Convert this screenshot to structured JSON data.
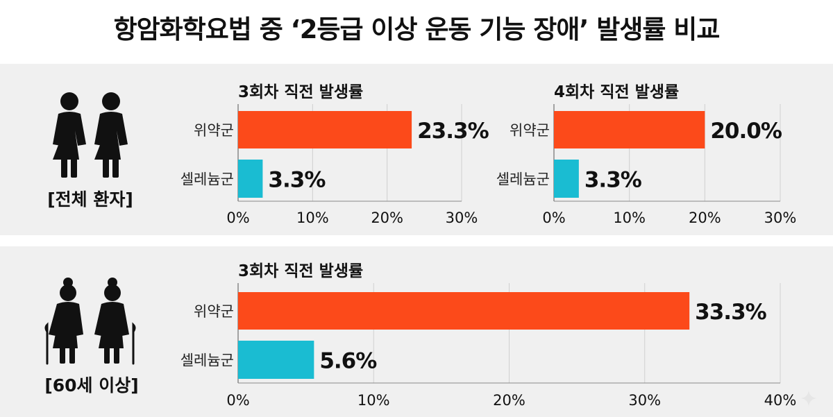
{
  "title": "항암화학요법 중 ‘2등급 이상 운동 기능 장애’ 발생률 비교",
  "groups": {
    "all": {
      "label": "[전체 환자]",
      "icon": "two-women-icon"
    },
    "elderly": {
      "label": "[60세 이상]",
      "icon": "two-elderly-women-with-canes-icon"
    }
  },
  "colors": {
    "placebo": "#fc4a1a",
    "celecoxib": "#1abcd2",
    "panel_bg": "#f0f0f0"
  },
  "chart_data": [
    {
      "type": "bar",
      "orientation": "horizontal",
      "title": "3회차 직전 발생률",
      "categories": [
        "위약군",
        "셀레늄군"
      ],
      "values": [
        23.3,
        3.3
      ],
      "value_labels": [
        "23.3%",
        "3.3%"
      ],
      "xlim": [
        0,
        30
      ],
      "ticks": [
        "0%",
        "10%",
        "20%",
        "30%"
      ],
      "grid": true
    },
    {
      "type": "bar",
      "orientation": "horizontal",
      "title": "4회차 직전 발생률",
      "categories": [
        "위약군",
        "셀레늄군"
      ],
      "values": [
        20.0,
        3.3
      ],
      "value_labels": [
        "20.0%",
        "3.3%"
      ],
      "xlim": [
        0,
        30
      ],
      "ticks": [
        "0%",
        "10%",
        "20%",
        "30%"
      ],
      "grid": true
    },
    {
      "type": "bar",
      "orientation": "horizontal",
      "title": "3회차 직전 발생률",
      "categories": [
        "위약군",
        "셀레늄군"
      ],
      "values": [
        33.3,
        5.6
      ],
      "value_labels": [
        "33.3%",
        "5.6%"
      ],
      "xlim": [
        0,
        40
      ],
      "ticks": [
        "0%",
        "10%",
        "20%",
        "30%",
        "40%"
      ],
      "grid": true
    }
  ]
}
